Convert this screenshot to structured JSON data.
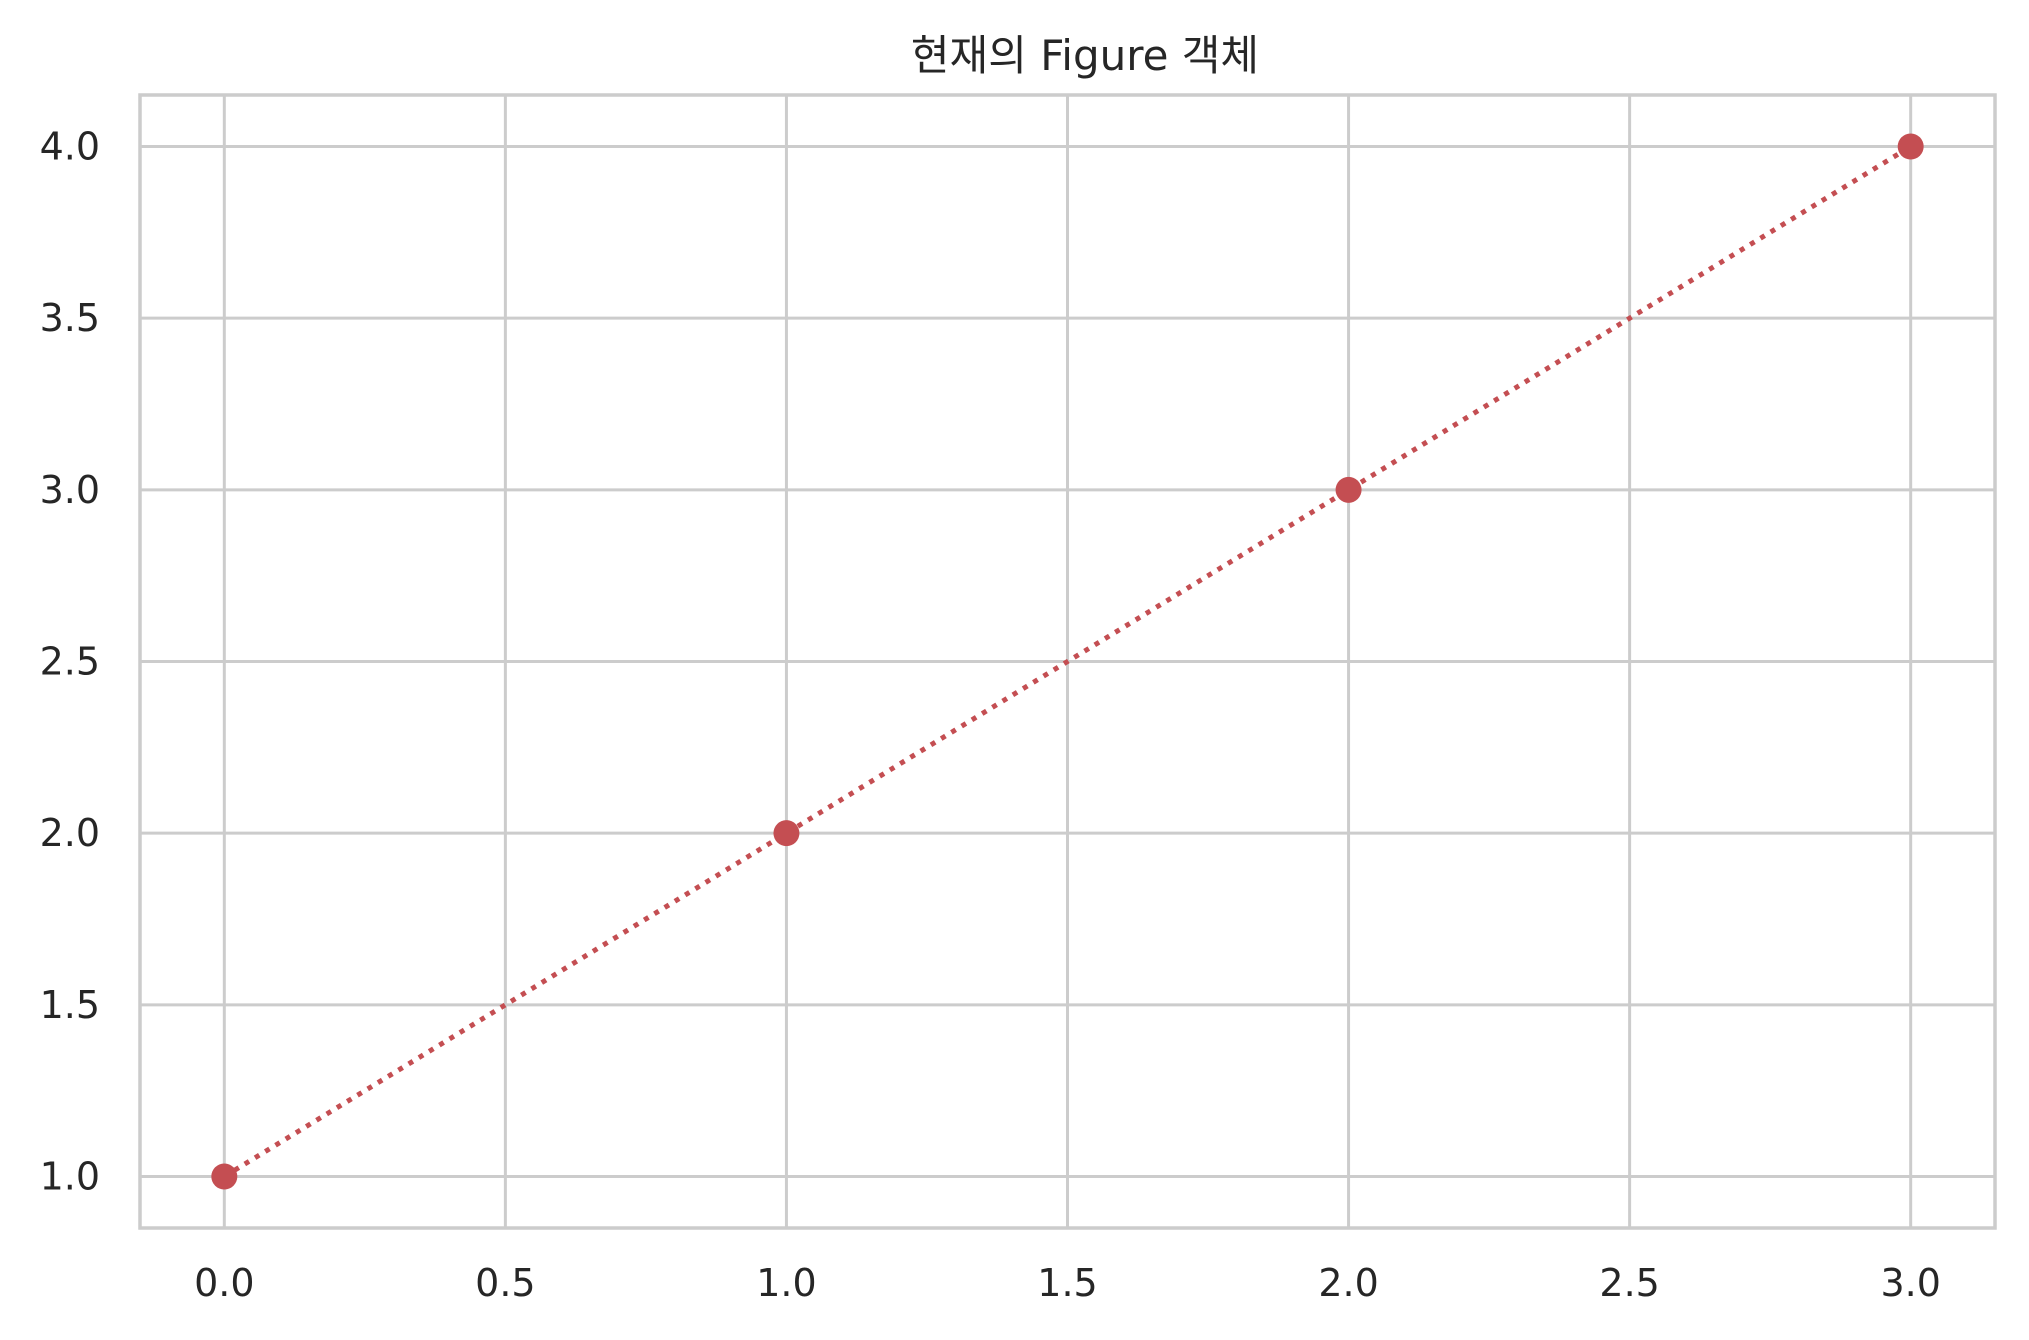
{
  "chart_data": {
    "type": "line",
    "title": "현재의 Figure 객체",
    "xlabel": "",
    "ylabel": "",
    "x": [
      0,
      1,
      2,
      3
    ],
    "series": [
      {
        "values": [
          1,
          2,
          3,
          4
        ],
        "color": "#c44e52",
        "line_style": "dotted",
        "marker": "circle"
      }
    ],
    "xlim": [
      -0.15,
      3.15
    ],
    "ylim": [
      0.85,
      4.15
    ],
    "xticks": [
      0.0,
      0.5,
      1.0,
      1.5,
      2.0,
      2.5,
      3.0
    ],
    "xtick_labels": [
      "0.0",
      "0.5",
      "1.0",
      "1.5",
      "2.0",
      "2.5",
      "3.0"
    ],
    "yticks": [
      1.0,
      1.5,
      2.0,
      2.5,
      3.0,
      3.5,
      4.0
    ],
    "ytick_labels": [
      "1.0",
      "1.5",
      "2.0",
      "2.5",
      "3.0",
      "3.5",
      "4.0"
    ],
    "grid": true,
    "legend": "none"
  }
}
